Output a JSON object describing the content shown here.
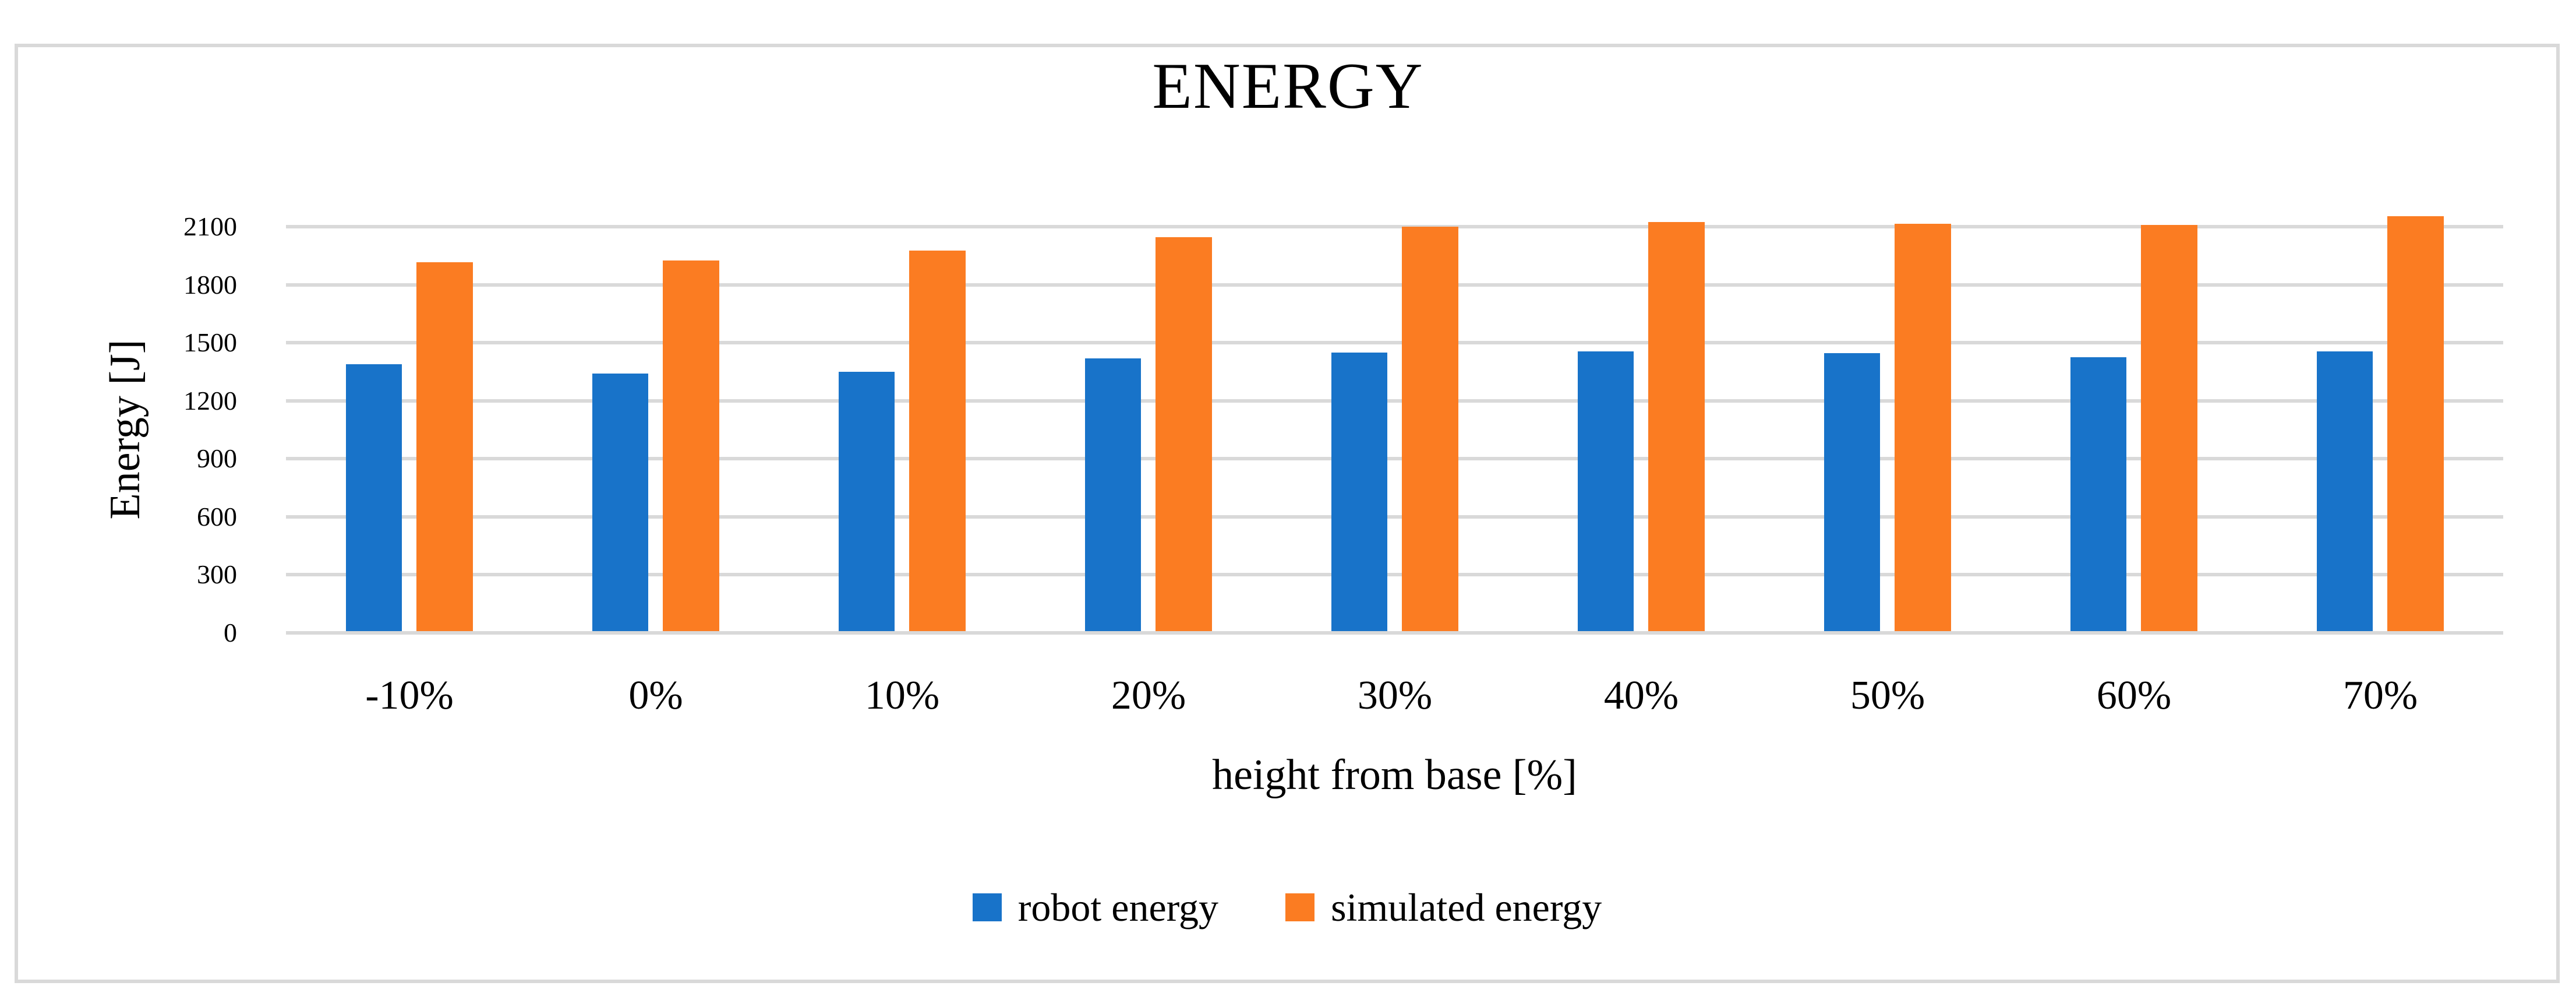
{
  "figure": {
    "title": "ENERGY"
  },
  "chart_data": {
    "type": "bar",
    "title": "ENERGY",
    "xlabel": "height from base [%]",
    "ylabel": "Energy [J]",
    "categories": [
      "-10%",
      "0%",
      "10%",
      "20%",
      "30%",
      "40%",
      "50%",
      "60%",
      "70%"
    ],
    "series": [
      {
        "name": "robot energy",
        "color": "#1873c9",
        "values": [
          1390,
          1340,
          1350,
          1420,
          1450,
          1455,
          1445,
          1425,
          1455
        ]
      },
      {
        "name": "simulated energy",
        "color": "#fb7c22",
        "values": [
          1915,
          1925,
          1975,
          2045,
          2100,
          2125,
          2115,
          2110,
          2155
        ]
      }
    ],
    "ylim": [
      0,
      2250
    ],
    "yticks": [
      0,
      300,
      600,
      900,
      1200,
      1500,
      1800,
      2100
    ],
    "grid": true,
    "legend_position": "bottom",
    "gridline_color": "#d9d9d9",
    "border_color": "#d9d9d9",
    "text_color": "#000000",
    "background_color": "#ffffff"
  }
}
